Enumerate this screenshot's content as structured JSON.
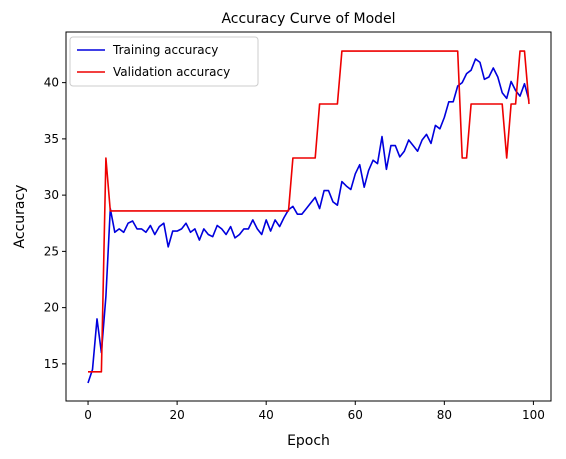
{
  "chart_data": {
    "type": "line",
    "title": "Accuracy Curve of Model",
    "xlabel": "Epoch",
    "ylabel": "Accuracy",
    "xlim": [
      -4.95,
      103.95
    ],
    "ylim": [
      11.7,
      44.5
    ],
    "xticks": [
      0,
      20,
      40,
      60,
      80,
      100
    ],
    "yticks": [
      15,
      20,
      25,
      30,
      35,
      40
    ],
    "grid": false,
    "legend": "upper-left",
    "series": [
      {
        "name": "Training accuracy",
        "color": "#0000dd",
        "x": [
          0,
          1,
          2,
          3,
          4,
          5,
          6,
          7,
          8,
          9,
          10,
          11,
          12,
          13,
          14,
          15,
          16,
          17,
          18,
          19,
          20,
          21,
          22,
          23,
          24,
          25,
          26,
          27,
          28,
          29,
          30,
          31,
          32,
          33,
          34,
          35,
          36,
          37,
          38,
          39,
          40,
          41,
          42,
          43,
          44,
          45,
          46,
          47,
          48,
          49,
          50,
          51,
          52,
          53,
          54,
          55,
          56,
          57,
          58,
          59,
          60,
          61,
          62,
          63,
          64,
          65,
          66,
          67,
          68,
          69,
          70,
          71,
          72,
          73,
          74,
          75,
          76,
          77,
          78,
          79,
          80,
          81,
          82,
          83,
          84,
          85,
          86,
          87,
          88,
          89,
          90,
          91,
          92,
          93,
          94,
          95,
          96,
          97,
          98,
          99
        ],
        "values": [
          13.3,
          14.5,
          19.0,
          16.0,
          21.0,
          28.8,
          26.7,
          27.0,
          26.7,
          27.5,
          27.7,
          27.0,
          27.0,
          26.7,
          27.3,
          26.5,
          27.2,
          27.5,
          25.4,
          26.8,
          26.8,
          27.0,
          27.5,
          26.7,
          27.0,
          26.0,
          27.0,
          26.5,
          26.3,
          27.3,
          27.0,
          26.5,
          27.2,
          26.2,
          26.5,
          27.0,
          27.0,
          27.8,
          27.0,
          26.5,
          27.8,
          26.8,
          27.8,
          27.2,
          28.0,
          28.7,
          29.0,
          28.3,
          28.3,
          28.8,
          29.3,
          29.8,
          28.8,
          30.4,
          30.4,
          29.4,
          29.1,
          31.2,
          30.8,
          30.5,
          31.9,
          32.7,
          30.7,
          32.2,
          33.1,
          32.8,
          35.2,
          32.3,
          34.4,
          34.4,
          33.4,
          33.9,
          34.9,
          34.4,
          33.9,
          34.9,
          35.4,
          34.6,
          36.2,
          35.9,
          36.9,
          38.3,
          38.3,
          39.7,
          40.0,
          40.8,
          41.1,
          42.1,
          41.8,
          40.3,
          40.5,
          41.3,
          40.5,
          39.1,
          38.6,
          40.1,
          39.3,
          38.8,
          39.9,
          38.4
        ]
      },
      {
        "name": "Validation accuracy",
        "color": "#ee0000",
        "x": [
          0,
          3,
          4,
          5,
          45,
          46,
          51,
          52,
          56,
          57,
          83,
          84,
          85,
          86,
          93,
          94,
          95,
          96,
          97,
          98,
          99
        ],
        "values": [
          14.3,
          14.3,
          33.3,
          28.6,
          28.6,
          33.3,
          33.3,
          38.1,
          38.1,
          42.8,
          42.8,
          33.3,
          33.3,
          38.1,
          38.1,
          33.3,
          38.1,
          38.1,
          42.8,
          42.8,
          38.1
        ]
      }
    ]
  }
}
